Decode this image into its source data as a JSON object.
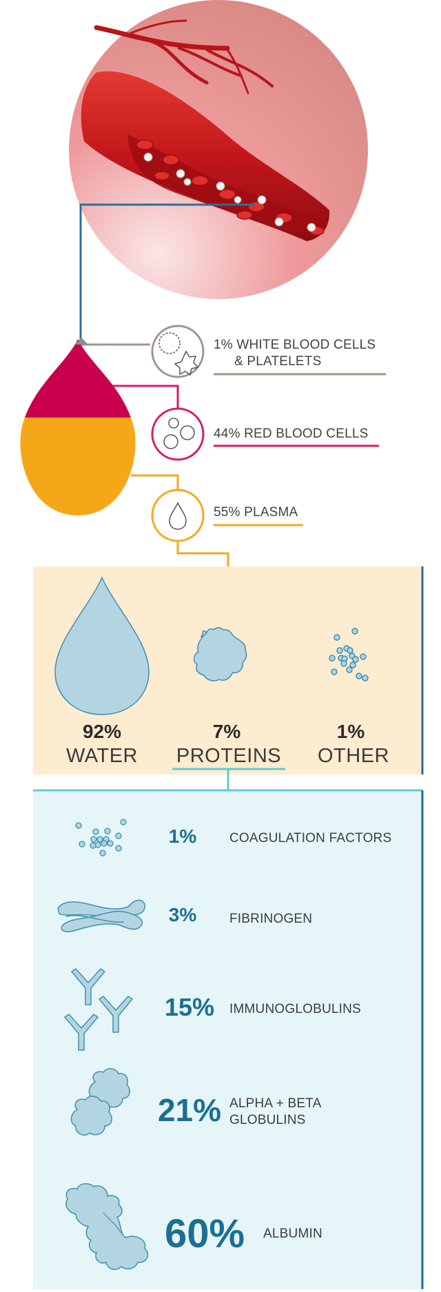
{
  "components": [
    {
      "label": "1% WHITE BLOOD CELLS",
      "label_line2": "& PLATELETS",
      "color": "#a39389"
    },
    {
      "label": "44% RED BLOOD CELLS",
      "color": "#d81b69"
    },
    {
      "label": "55% PLASMA",
      "color": "#f5a81c"
    }
  ],
  "plasma": [
    {
      "pct": "92%",
      "name": "WATER"
    },
    {
      "pct": "7%",
      "name": "PROTEINS"
    },
    {
      "pct": "1%",
      "name": "OTHER"
    }
  ],
  "proteins": [
    {
      "pct": "1%",
      "name": "COAGULATION FACTORS"
    },
    {
      "pct": "3%",
      "name": "FIBRINOGEN"
    },
    {
      "pct": "15%",
      "name": "IMMUNOGLOBULINS"
    },
    {
      "pct": "21%",
      "name": "ALPHA + BETA",
      "name_line2": "GLOBULINS"
    },
    {
      "pct": "60%",
      "name": "ALBUMIN"
    }
  ],
  "colors": {
    "red_cells": "#c9004e",
    "plasma": "#f6a719",
    "plasma_panel": "#fdecd0",
    "protein_panel": "#e6f5f8",
    "accent_teal": "#5fcdd1",
    "accent_blue": "#1c6f93",
    "shape_fill": "#b3d5e1",
    "shape_stroke": "#3f8fb0"
  }
}
